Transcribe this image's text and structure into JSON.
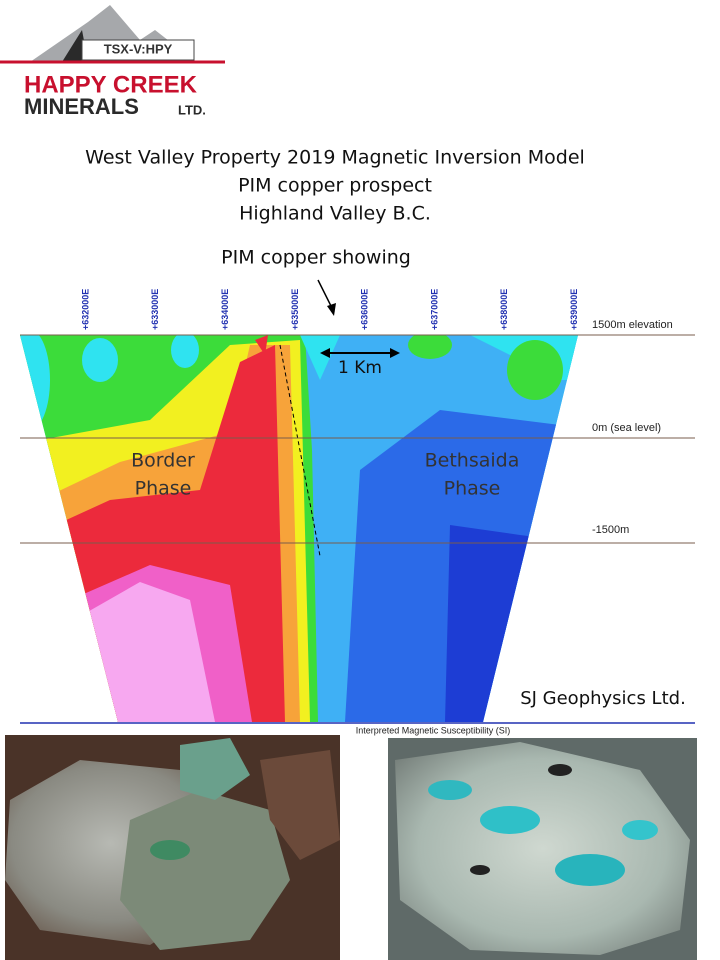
{
  "logo": {
    "exchange": "TSX-V:HPY",
    "name_line1": "HAPPY CREEK",
    "name_line2": "MINERALS",
    "suffix": "LTD."
  },
  "title": {
    "lines": [
      "West Valley Property 2019 Magnetic Inversion Model",
      "PIM copper prospect",
      "Highland Valley B.C."
    ]
  },
  "section": {
    "annotation": "PIM copper showing",
    "scale_label": "1 Km",
    "eastings": [
      "+632000E",
      "+633000E",
      "+634000E",
      "+635000E",
      "+636000E",
      "+637000E",
      "+638000E",
      "+639000E"
    ],
    "elevations": [
      "1500m elevation",
      "0m (sea level)",
      "-1500m"
    ],
    "phases": [
      {
        "lines": [
          "Border",
          "Phase"
        ]
      },
      {
        "lines": [
          "Bethsaida",
          "Phase"
        ]
      }
    ],
    "credit": "SJ Geophysics Ltd.",
    "caption": "Interpreted Magnetic Susceptibility (SI)"
  }
}
